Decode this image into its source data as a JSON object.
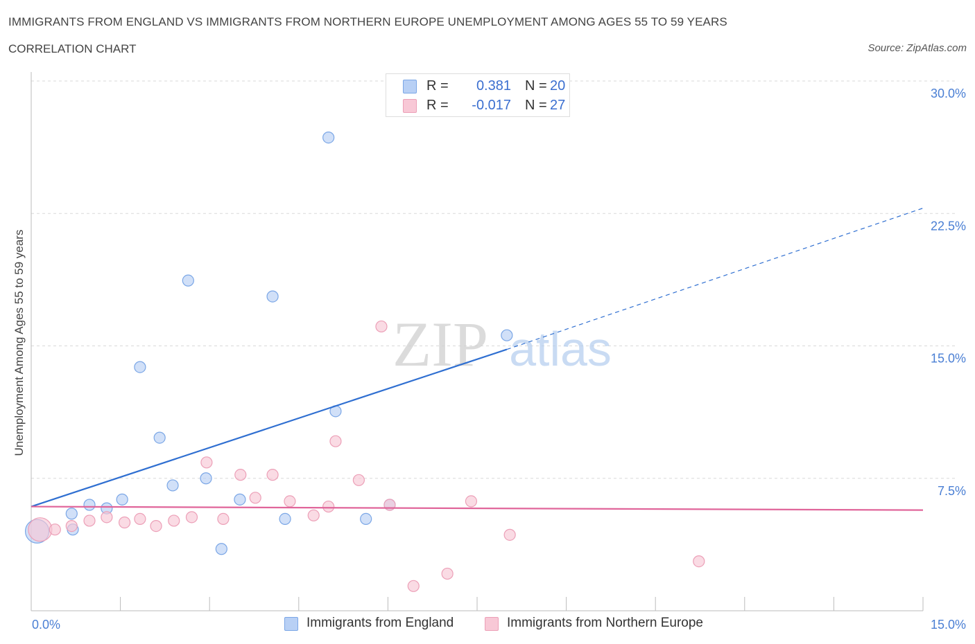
{
  "header": {
    "title": "IMMIGRANTS FROM ENGLAND VS IMMIGRANTS FROM NORTHERN EUROPE UNEMPLOYMENT AMONG AGES 55 TO 59 YEARS",
    "subtitle": "CORRELATION CHART",
    "source": "Source: ZipAtlas.com"
  },
  "legend": {
    "england": {
      "r_label": "R =",
      "r_value": "0.381",
      "n_label": "N =",
      "n_value": "20"
    },
    "northern_europe": {
      "r_label": "R =",
      "r_value": "-0.017",
      "n_label": "N =",
      "n_value": "27"
    }
  },
  "colors": {
    "england_fill": "#b8d0f5",
    "england_stroke": "#7aa6e6",
    "england_line": "#2f6fd1",
    "ne_fill": "#f8c8d6",
    "ne_stroke": "#ec9fb7",
    "ne_line": "#e0659a",
    "grid": "#d9d9d9",
    "axis_label": "#4a7fd4"
  },
  "watermark": {
    "zip": "ZIP",
    "atlas": "atlas"
  },
  "chart_data": {
    "type": "scatter",
    "title": "IMMIGRANTS FROM ENGLAND VS IMMIGRANTS FROM NORTHERN EUROPE UNEMPLOYMENT AMONG AGES 55 TO 59 YEARS",
    "subtitle": "CORRELATION CHART",
    "xlabel": "",
    "ylabel": "Unemployment Among Ages 55 to 59 years",
    "xlim": [
      0,
      15
    ],
    "ylim": [
      0,
      30
    ],
    "x_tick_labels": [
      "0.0%",
      "15.0%"
    ],
    "y_ticks": [
      {
        "value": 7.5,
        "label": "7.5%"
      },
      {
        "value": 15,
        "label": "15.0%"
      },
      {
        "value": 22.5,
        "label": "22.5%"
      },
      {
        "value": 30,
        "label": "30.0%"
      }
    ],
    "grid": true,
    "legend_position": "top-center",
    "series": [
      {
        "name": "Immigrants from England",
        "r": 0.381,
        "n": 20,
        "points": [
          {
            "x": 0.1,
            "y": 4.5,
            "size": "large"
          },
          {
            "x": 0.7,
            "y": 4.6
          },
          {
            "x": 0.68,
            "y": 5.5
          },
          {
            "x": 0.98,
            "y": 6.0
          },
          {
            "x": 1.27,
            "y": 5.8
          },
          {
            "x": 1.53,
            "y": 6.3
          },
          {
            "x": 1.83,
            "y": 13.8
          },
          {
            "x": 2.16,
            "y": 9.8
          },
          {
            "x": 2.38,
            "y": 7.1
          },
          {
            "x": 2.64,
            "y": 18.7
          },
          {
            "x": 2.94,
            "y": 7.5
          },
          {
            "x": 3.2,
            "y": 3.5
          },
          {
            "x": 3.51,
            "y": 6.3
          },
          {
            "x": 4.06,
            "y": 17.8
          },
          {
            "x": 4.27,
            "y": 5.2
          },
          {
            "x": 5.0,
            "y": 26.8
          },
          {
            "x": 5.12,
            "y": 11.3
          },
          {
            "x": 5.63,
            "y": 5.2
          },
          {
            "x": 6.03,
            "y": 6.0
          },
          {
            "x": 8.0,
            "y": 15.6
          }
        ],
        "trend": {
          "x0": 0,
          "y0": 5.9,
          "x1": 8.0,
          "y1": 14.8,
          "dashed_to_x": 15,
          "dashed_to_y": 22.8
        }
      },
      {
        "name": "Immigrants from Northern Europe",
        "r": -0.017,
        "n": 27,
        "points": [
          {
            "x": 0.15,
            "y": 4.6,
            "size": "large"
          },
          {
            "x": 0.4,
            "y": 4.6
          },
          {
            "x": 0.68,
            "y": 4.8
          },
          {
            "x": 0.98,
            "y": 5.1
          },
          {
            "x": 1.27,
            "y": 5.3
          },
          {
            "x": 1.57,
            "y": 5.0
          },
          {
            "x": 1.83,
            "y": 5.2
          },
          {
            "x": 2.1,
            "y": 4.8
          },
          {
            "x": 2.4,
            "y": 5.1
          },
          {
            "x": 2.7,
            "y": 5.3
          },
          {
            "x": 2.95,
            "y": 8.4
          },
          {
            "x": 3.23,
            "y": 5.2
          },
          {
            "x": 3.52,
            "y": 7.7
          },
          {
            "x": 3.77,
            "y": 6.4
          },
          {
            "x": 4.06,
            "y": 7.7
          },
          {
            "x": 4.35,
            "y": 6.2
          },
          {
            "x": 4.75,
            "y": 5.4
          },
          {
            "x": 5.0,
            "y": 5.9
          },
          {
            "x": 5.12,
            "y": 9.6
          },
          {
            "x": 5.51,
            "y": 7.4
          },
          {
            "x": 5.89,
            "y": 16.1
          },
          {
            "x": 6.03,
            "y": 6.0
          },
          {
            "x": 6.43,
            "y": 1.4
          },
          {
            "x": 7.0,
            "y": 2.1
          },
          {
            "x": 7.4,
            "y": 6.2
          },
          {
            "x": 8.05,
            "y": 4.3
          },
          {
            "x": 11.23,
            "y": 2.8
          }
        ],
        "trend": {
          "x0": 0,
          "y0": 5.9,
          "x1": 15,
          "y1": 5.7
        }
      }
    ]
  }
}
